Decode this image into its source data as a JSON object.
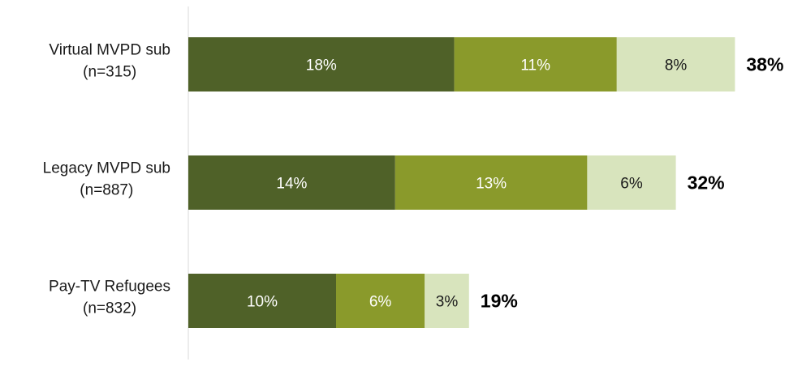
{
  "chart_data": {
    "type": "bar",
    "orientation": "horizontal",
    "stacked": true,
    "categories": [
      [
        "Virtual MVPD sub",
        "(n=315)"
      ],
      [
        "Legacy MVPD sub",
        "(n=887)"
      ],
      [
        "Pay-TV Refugees",
        "(n=832)"
      ]
    ],
    "series": [
      {
        "values": [
          18,
          14,
          10
        ],
        "labels": [
          "18%",
          "14%",
          "10%"
        ],
        "color": "#4f6128",
        "label_color": "#ffffff"
      },
      {
        "values": [
          11,
          13,
          6
        ],
        "labels": [
          "11%",
          "13%",
          "6%"
        ],
        "color": "#8a9a2b",
        "label_color": "#ffffff"
      },
      {
        "values": [
          8,
          6,
          3
        ],
        "labels": [
          "8%",
          "6%",
          "3%"
        ],
        "color": "#d8e4bd",
        "label_color": "#1a1a1a"
      }
    ],
    "totals": [
      "38%",
      "32%",
      "19%"
    ],
    "axis_line_color": "#d9d9d9",
    "grid": false,
    "legend": "none"
  }
}
